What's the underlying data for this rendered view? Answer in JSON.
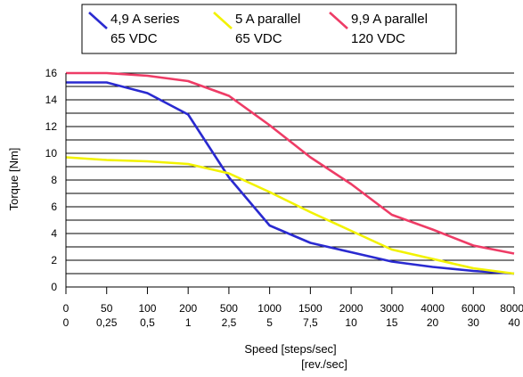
{
  "chart_data": {
    "type": "line",
    "xlabel": "Speed [steps/sec]",
    "xlabel2": "[rev./sec]",
    "ylabel": "Torque [Nm]",
    "ylim": [
      0,
      16
    ],
    "yticks": [
      "0",
      "2",
      "4",
      "6",
      "8",
      "10",
      "12",
      "14",
      "16"
    ],
    "x_scale": "categorical (non-uniform speed steps, equally spaced)",
    "categories": [
      "0",
      "50",
      "100",
      "200",
      "500",
      "1000",
      "1500",
      "2000",
      "3000",
      "4000",
      "6000",
      "8000"
    ],
    "categories_rev": [
      "0",
      "0,25",
      "0,5",
      "1",
      "2,5",
      "5",
      "7,5",
      "10",
      "15",
      "20",
      "30",
      "40"
    ],
    "grid": "horizontal lines every 1 Nm",
    "legend_position": "top",
    "series": [
      {
        "name_line1": "4,9 A series",
        "name_line2": "65 VDC",
        "color": "#2a2ad0",
        "points": [
          [
            0,
            15.3
          ],
          [
            1,
            15.3
          ],
          [
            2,
            14.5
          ],
          [
            3,
            12.9
          ],
          [
            4,
            8.2
          ],
          [
            5,
            4.6
          ],
          [
            6,
            3.3
          ],
          [
            7,
            2.6
          ],
          [
            8,
            1.9
          ],
          [
            9,
            1.5
          ],
          [
            10,
            1.2
          ],
          [
            11,
            1.0
          ]
        ]
      },
      {
        "name_line1": "5 A parallel",
        "name_line2": "65 VDC",
        "color": "#f2f200",
        "points": [
          [
            0,
            9.7
          ],
          [
            1,
            9.5
          ],
          [
            2,
            9.4
          ],
          [
            3,
            9.2
          ],
          [
            4,
            8.5
          ],
          [
            5,
            7.1
          ],
          [
            6,
            5.6
          ],
          [
            7,
            4.2
          ],
          [
            8,
            2.8
          ],
          [
            9,
            2.1
          ],
          [
            10,
            1.4
          ],
          [
            11,
            1.0
          ]
        ]
      },
      {
        "name_line1": "9,9 A parallel",
        "name_line2": "120 VDC",
        "color": "#ee3c66",
        "points": [
          [
            0,
            16.0
          ],
          [
            1,
            16.0
          ],
          [
            2,
            15.8
          ],
          [
            3,
            15.4
          ],
          [
            4,
            14.3
          ],
          [
            5,
            12.1
          ],
          [
            6,
            9.7
          ],
          [
            7,
            7.7
          ],
          [
            8,
            5.4
          ],
          [
            9,
            4.3
          ],
          [
            10,
            3.1
          ],
          [
            11,
            2.5
          ]
        ]
      }
    ]
  }
}
